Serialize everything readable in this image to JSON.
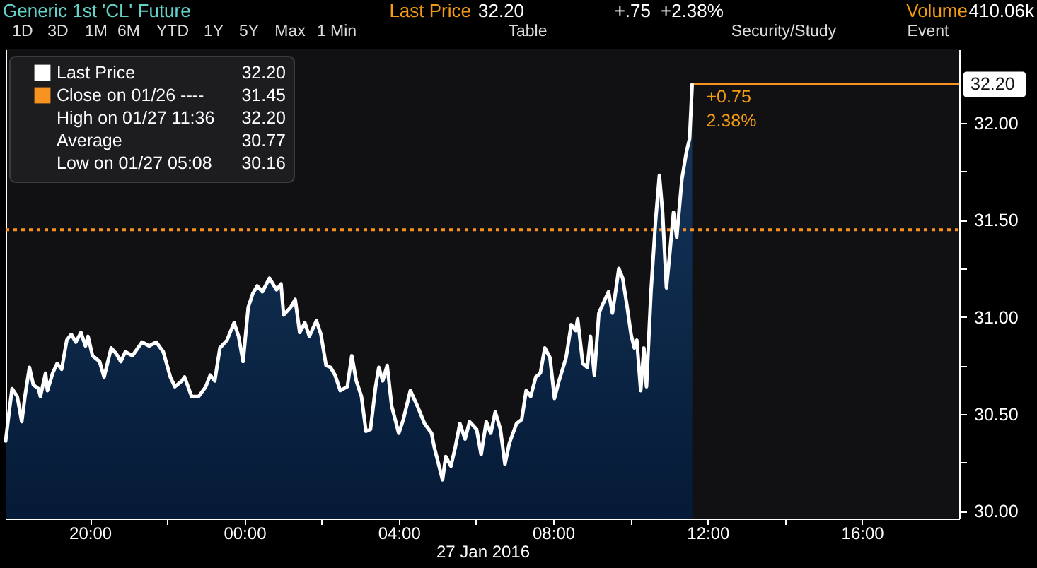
{
  "chart_data": {
    "type": "area",
    "title": "Generic 1st 'CL' Future",
    "xlabel": "27 Jan 2016",
    "legend": "top left",
    "x": [
      "2016-01-26T17:49",
      "2016-01-26T17:54",
      "2016-01-26T17:59",
      "2016-01-26T18:07",
      "2016-01-26T18:14",
      "2016-01-26T18:19",
      "2016-01-26T18:26",
      "2016-01-26T18:32",
      "2016-01-26T18:40",
      "2016-01-26T18:43",
      "2016-01-26T18:51",
      "2016-01-26T18:54",
      "2016-01-26T19:02",
      "2016-01-26T19:09",
      "2016-01-26T19:16",
      "2016-01-26T19:24",
      "2016-01-26T19:31",
      "2016-01-26T19:38",
      "2016-01-26T19:46",
      "2016-01-26T19:53",
      "2016-01-26T19:57",
      "2016-01-26T20:04",
      "2016-01-26T20:15",
      "2016-01-26T20:22",
      "2016-01-26T20:33",
      "2016-01-26T20:41",
      "2016-01-26T20:48",
      "2016-01-26T20:55",
      "2016-01-26T21:06",
      "2016-01-26T21:21",
      "2016-01-26T21:32",
      "2016-01-26T21:43",
      "2016-01-26T21:54",
      "2016-01-26T22:05",
      "2016-01-26T22:12",
      "2016-01-26T22:23",
      "2016-01-26T22:27",
      "2016-01-26T22:38",
      "2016-01-26T22:49",
      "2016-01-26T23:00",
      "2016-01-26T23:07",
      "2016-01-26T23:14",
      "2016-01-26T23:22",
      "2016-01-26T23:33",
      "2016-01-26T23:44",
      "2016-01-26T23:51",
      "2016-01-26T23:58",
      "2016-01-27T00:06",
      "2016-01-27T00:13",
      "2016-01-27T00:20",
      "2016-01-27T00:28",
      "2016-01-27T00:39",
      "2016-01-27T00:50",
      "2016-01-27T00:57",
      "2016-01-27T01:01",
      "2016-01-27T01:12",
      "2016-01-27T01:19",
      "2016-01-27T01:26",
      "2016-01-27T01:34",
      "2016-01-27T01:41",
      "2016-01-27T01:52",
      "2016-01-27T01:59",
      "2016-01-27T02:07",
      "2016-01-27T02:14",
      "2016-01-27T02:21",
      "2016-01-27T02:29",
      "2016-01-27T02:40",
      "2016-01-27T02:47",
      "2016-01-27T02:54",
      "2016-01-27T03:02",
      "2016-01-27T03:09",
      "2016-01-27T03:16",
      "2016-01-27T03:24",
      "2016-01-27T03:29",
      "2016-01-27T03:35",
      "2016-01-27T03:42",
      "2016-01-27T03:49",
      "2016-01-27T04:00",
      "2016-01-27T04:07",
      "2016-01-27T04:18",
      "2016-01-27T04:29",
      "2016-01-27T04:40",
      "2016-01-27T04:51",
      "2016-01-27T04:55",
      "2016-01-27T05:08",
      "2016-01-27T05:13",
      "2016-01-27T05:21",
      "2016-01-27T05:28",
      "2016-01-27T05:35",
      "2016-01-27T05:43",
      "2016-01-27T05:50",
      "2016-01-27T06:01",
      "2016-01-27T06:08",
      "2016-01-27T06:16",
      "2016-01-27T06:23",
      "2016-01-27T06:30",
      "2016-01-27T06:38",
      "2016-01-27T06:45",
      "2016-01-27T06:52",
      "2016-01-27T07:03",
      "2016-01-27T07:11",
      "2016-01-27T07:18",
      "2016-01-27T07:25",
      "2016-01-27T07:33",
      "2016-01-27T07:40",
      "2016-01-27T07:47",
      "2016-01-27T07:55",
      "2016-01-27T08:02",
      "2016-01-27T08:09",
      "2016-01-27T08:20",
      "2016-01-27T08:28",
      "2016-01-27T08:35",
      "2016-01-27T08:38",
      "2016-01-27T08:46",
      "2016-01-27T08:53",
      "2016-01-27T08:58",
      "2016-01-27T09:04",
      "2016-01-27T09:11",
      "2016-01-27T09:19",
      "2016-01-27T09:26",
      "2016-01-27T09:32",
      "2016-01-27T09:37",
      "2016-01-27T09:42",
      "2016-01-27T09:48",
      "2016-01-27T09:55",
      "2016-01-27T10:01",
      "2016-01-27T10:06",
      "2016-01-27T10:10",
      "2016-01-27T10:16",
      "2016-01-27T10:21",
      "2016-01-27T10:25",
      "2016-01-27T10:32",
      "2016-01-27T10:39",
      "2016-01-27T10:45",
      "2016-01-27T10:50",
      "2016-01-27T10:56",
      "2016-01-27T11:01",
      "2016-01-27T11:07",
      "2016-01-27T11:12",
      "2016-01-27T11:20",
      "2016-01-27T11:27",
      "2016-01-27T11:32",
      "2016-01-27T11:36"
    ],
    "series": [
      {
        "name": "Last Price",
        "color": "#ffffff",
        "values": [
          30.36,
          30.5,
          30.63,
          30.59,
          30.46,
          30.59,
          30.74,
          30.65,
          30.63,
          30.59,
          30.71,
          30.62,
          30.71,
          30.76,
          30.73,
          30.88,
          30.91,
          30.87,
          30.92,
          30.85,
          30.9,
          30.8,
          30.77,
          30.69,
          30.84,
          30.81,
          30.77,
          30.82,
          30.8,
          30.87,
          30.85,
          30.87,
          30.82,
          30.69,
          30.64,
          30.67,
          30.69,
          30.59,
          30.59,
          30.64,
          30.7,
          30.67,
          30.84,
          30.88,
          30.97,
          30.9,
          30.77,
          31.05,
          31.12,
          31.16,
          31.13,
          31.2,
          31.14,
          31.17,
          31.01,
          31.05,
          31.09,
          30.92,
          30.97,
          30.9,
          30.98,
          30.91,
          30.75,
          30.74,
          30.7,
          30.62,
          30.64,
          30.8,
          30.67,
          30.59,
          30.41,
          30.42,
          30.64,
          30.74,
          30.67,
          30.75,
          30.54,
          30.4,
          30.47,
          30.62,
          30.54,
          30.45,
          30.4,
          30.33,
          30.16,
          30.28,
          30.23,
          30.33,
          30.45,
          30.37,
          30.46,
          30.42,
          30.29,
          30.46,
          30.4,
          30.51,
          30.42,
          30.24,
          30.35,
          30.45,
          30.47,
          30.62,
          30.59,
          30.69,
          30.71,
          30.84,
          30.79,
          30.58,
          30.67,
          30.79,
          30.96,
          30.93,
          30.99,
          30.76,
          30.74,
          30.9,
          30.7,
          31.02,
          31.08,
          31.13,
          31.02,
          31.13,
          31.25,
          31.2,
          31.05,
          30.91,
          30.84,
          30.88,
          30.62,
          30.84,
          30.64,
          31.13,
          31.49,
          31.73,
          31.54,
          31.15,
          31.32,
          31.54,
          31.41,
          31.71,
          31.85,
          31.92,
          32.2
        ]
      }
    ],
    "xlim": [
      "2016-01-26T17:49",
      "2016-01-27T18:31"
    ],
    "xticks": [
      {
        "value": "2016-01-26T20:00",
        "label": "20:00"
      },
      {
        "value": "2016-01-26T22:00",
        "label": null
      },
      {
        "value": "2016-01-27T00:00",
        "label": "00:00"
      },
      {
        "value": "2016-01-27T02:00",
        "label": null
      },
      {
        "value": "2016-01-27T04:00",
        "label": "04:00"
      },
      {
        "value": "2016-01-27T06:00",
        "label": null
      },
      {
        "value": "2016-01-27T08:00",
        "label": "08:00"
      },
      {
        "value": "2016-01-27T10:00",
        "label": null
      },
      {
        "value": "2016-01-27T12:00",
        "label": "12:00"
      },
      {
        "value": "2016-01-27T14:00",
        "label": null
      },
      {
        "value": "2016-01-27T16:00",
        "label": "16:00"
      }
    ],
    "ylim": [
      29.96,
      32.38
    ],
    "yticks": [
      {
        "value": 30,
        "label": "30.00"
      },
      {
        "value": 30.25,
        "label": null
      },
      {
        "value": 30.5,
        "label": "30.50"
      },
      {
        "value": 30.75,
        "label": null
      },
      {
        "value": 31,
        "label": "31.00"
      },
      {
        "value": 31.25,
        "label": null
      },
      {
        "value": 31.5,
        "label": "31.50"
      },
      {
        "value": 31.75,
        "label": null
      },
      {
        "value": 32,
        "label": "32.00"
      }
    ],
    "ref_lines": [
      {
        "axis": "y",
        "value": 31.45,
        "label": "Close on 01/26 ----",
        "color": "#f7931e",
        "line_style": "dotted"
      },
      {
        "axis": "y",
        "value": 32.2,
        "label": "32.20",
        "color": "#f7931e",
        "line_style": "solid"
      }
    ],
    "annotations": [
      "Last Price",
      "32.20",
      "+.75",
      "+2.38%",
      "Volume",
      "410.06k",
      "1D",
      "3D",
      "1M",
      "6M",
      "YTD",
      "1Y",
      "5Y",
      "Max",
      "1 Min",
      "Table",
      "Security/Study",
      "Event",
      "32.20",
      "31.45",
      "High on 01/27 11:36",
      "32.20",
      "Average",
      "30.77",
      "Low on 01/27 05:08",
      "30.16",
      {
        "text": "+0.75",
        "x": "2016-01-27T11:36",
        "y": 32.2
      },
      {
        "text": "2.38%",
        "x": "2016-01-27T11:36",
        "y": 32.2
      }
    ]
  }
}
